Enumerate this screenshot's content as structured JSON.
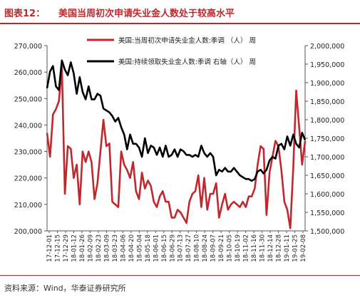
{
  "header": {
    "label": "图表12：",
    "title": "美国当周初次申请失业金人数处于较高水平"
  },
  "footer": {
    "source": "资料来源：Wind，华泰证券研究所"
  },
  "chart_data": {
    "type": "line",
    "title": "",
    "xlabel": "",
    "ylabel": "",
    "legend_position": "top-right",
    "grid": false,
    "x_tick_labels": [
      "17-12-01",
      "17-12-15",
      "17-12-29",
      "18-01-12",
      "18-01-26",
      "18-02-09",
      "18-02-23",
      "18-03-09",
      "18-03-23",
      "18-04-06",
      "18-04-20",
      "18-05-04",
      "18-05-18",
      "18-06-01",
      "18-06-15",
      "18-06-29",
      "18-07-13",
      "18-07-27",
      "18-08-10",
      "18-08-24",
      "18-09-07",
      "18-09-21",
      "18-10-05",
      "18-10-19",
      "18-11-02",
      "18-11-16",
      "18-11-30",
      "18-12-14",
      "18-12-28",
      "19-01-11",
      "19-01-25",
      "19-02-08"
    ],
    "left_axis": {
      "range": [
        200000,
        270000
      ],
      "ticks": [
        "200,000",
        "210,000",
        "220,000",
        "230,000",
        "240,000",
        "250,000",
        "260,000",
        "270,000"
      ]
    },
    "right_axis": {
      "range": [
        1500000,
        2000000
      ],
      "ticks": [
        "1,500,000",
        "1,550,000",
        "1,600,000",
        "1,650,000",
        "1,700,000",
        "1,750,000",
        "1,800,000",
        "1,850,000",
        "1,900,000",
        "1,950,000",
        "2,000,000"
      ]
    },
    "series": [
      {
        "name": "美国:当周初次申请失业金人数:季调 （人） 周",
        "axis": "left",
        "color": "#c0282d",
        "values": [
          237000,
          228000,
          244000,
          246000,
          249000,
          262000,
          214000,
          232000,
          231000,
          220000,
          225000,
          210000,
          230000,
          226000,
          230000,
          226000,
          212000,
          218000,
          230000,
          242000,
          232000,
          233000,
          211000,
          210000,
          209000,
          230000,
          225000,
          223000,
          220000,
          226000,
          215000,
          212000,
          222000,
          216000,
          219000,
          217000,
          211000,
          209000,
          213000,
          215000,
          211000,
          211000,
          205000,
          205000,
          208000,
          207000,
          205000,
          203000,
          211000,
          214000,
          215000,
          221000,
          209000,
          220000,
          208000,
          214000,
          214000,
          218000,
          205000,
          210000,
          214000,
          208000,
          210000,
          211000,
          210000,
          209000,
          211000,
          209000,
          213000,
          213000,
          216000,
          225000,
          232000,
          231000,
          206000,
          222000,
          228000,
          234000,
          232000,
          223000,
          211000,
          208000,
          201000,
          224000,
          253000,
          239000,
          225000,
          234000
        ]
      },
      {
        "name": "美国:持续领取失业金人数:季调 右轴（人） 周",
        "axis": "right",
        "color": "#000000",
        "values": [
          1885000,
          1930000,
          1945000,
          1890000,
          1880000,
          1960000,
          1935000,
          1920000,
          1955000,
          1925000,
          1870000,
          1915000,
          1875000,
          1855000,
          1890000,
          1855000,
          1855000,
          1870000,
          1865000,
          1830000,
          1825000,
          1820000,
          1810000,
          1795000,
          1805000,
          1780000,
          1760000,
          1720000,
          1760000,
          1735000,
          1735000,
          1725000,
          1700000,
          1750000,
          1710000,
          1730000,
          1725000,
          1705000,
          1725000,
          1700000,
          1730000,
          1700000,
          1705000,
          1720000,
          1700000,
          1720000,
          1715000,
          1705000,
          1705000,
          1700000,
          1705000,
          1700000,
          1730000,
          1710000,
          1700000,
          1710000,
          1700000,
          1650000,
          1665000,
          1660000,
          1670000,
          1660000,
          1660000,
          1670000,
          1660000,
          1650000,
          1645000,
          1640000,
          1640000,
          1635000,
          1640000,
          1660000,
          1665000,
          1655000,
          1665000,
          1690000,
          1700000,
          1695000,
          1730000,
          1735000,
          1720000,
          1755000,
          1730000,
          1760000,
          1735000,
          1725000,
          1765000,
          1745000
        ]
      }
    ]
  }
}
